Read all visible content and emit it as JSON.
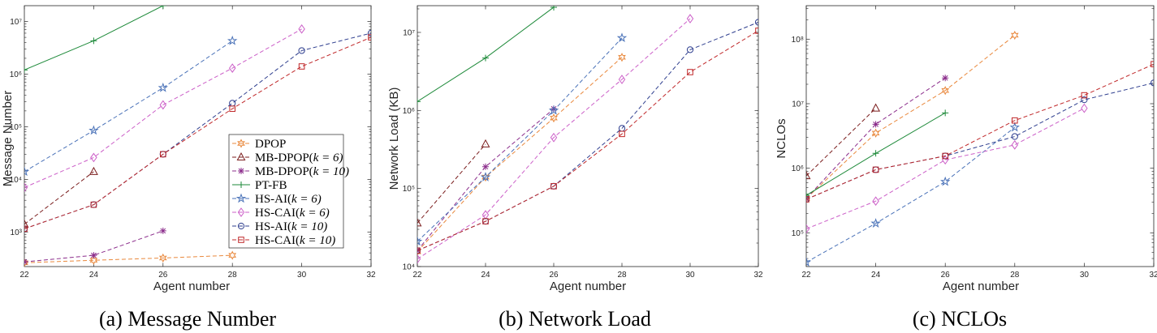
{
  "chart_data": [
    {
      "type": "line",
      "caption": "(a) Message Number",
      "ylabel": "Message Number",
      "xlabel": "Agent number",
      "yscale": "log",
      "xlim": [
        22,
        32
      ],
      "ylim": [
        220,
        20000000
      ],
      "x_ticks": [
        22,
        24,
        26,
        28,
        30,
        32
      ],
      "y_ticks": [
        1000,
        10000,
        100000,
        1000000,
        10000000
      ],
      "y_tick_labels": [
        "10³",
        "10⁴",
        "10⁵",
        "10⁶",
        "10⁷"
      ],
      "legend_position": "inside lower-right",
      "series": [
        {
          "name": "DPOP",
          "x": [
            22,
            24,
            26,
            28
          ],
          "values": [
            260,
            290,
            320,
            360
          ]
        },
        {
          "name": "MB-DPOP(k = 6)",
          "x": [
            22,
            24
          ],
          "values": [
            1400,
            14000
          ]
        },
        {
          "name": "MB-DPOP(k = 10)",
          "x": [
            22,
            24,
            26
          ],
          "values": [
            270,
            360,
            1050
          ]
        },
        {
          "name": "PT-FB",
          "x": [
            22,
            24,
            26
          ],
          "values": [
            1200000,
            4300000,
            20000000
          ]
        },
        {
          "name": "HS-AI(k = 6)",
          "x": [
            22,
            24,
            26,
            28
          ],
          "values": [
            14000,
            85000,
            550000,
            4300000
          ]
        },
        {
          "name": "HS-CAI(k = 6)",
          "x": [
            22,
            24,
            26,
            28,
            30
          ],
          "values": [
            7000,
            26000,
            260000,
            1300000,
            7200000
          ]
        },
        {
          "name": "HS-AI(k = 10)",
          "x": [
            22,
            24,
            26,
            28,
            30,
            32
          ],
          "values": [
            1150,
            3300,
            30000,
            280000,
            2800000,
            6000000
          ]
        },
        {
          "name": "HS-CAI(k = 10)",
          "x": [
            22,
            24,
            26,
            28,
            30,
            32
          ],
          "values": [
            1150,
            3300,
            30000,
            220000,
            1400000,
            5000000
          ]
        }
      ]
    },
    {
      "type": "line",
      "caption": "(b) Network Load",
      "ylabel": "Network Load (KB)",
      "xlabel": "Agent number",
      "yscale": "log",
      "xlim": [
        22,
        32
      ],
      "ylim": [
        10000,
        22000000
      ],
      "x_ticks": [
        22,
        24,
        26,
        28,
        30,
        32
      ],
      "y_ticks": [
        10000,
        100000,
        1000000,
        10000000
      ],
      "y_tick_labels": [
        "10⁴",
        "10⁵",
        "10⁶",
        "10⁷"
      ],
      "series": [
        {
          "name": "DPOP",
          "x": [
            22,
            24,
            26,
            28
          ],
          "values": [
            15500,
            140000,
            800000,
            4800000
          ]
        },
        {
          "name": "MB-DPOP(k = 6)",
          "x": [
            22,
            24
          ],
          "values": [
            36000,
            370000
          ]
        },
        {
          "name": "MB-DPOP(k = 10)",
          "x": [
            22,
            24,
            26
          ],
          "values": [
            16000,
            190000,
            1050000
          ]
        },
        {
          "name": "PT-FB",
          "x": [
            22,
            24,
            26
          ],
          "values": [
            1300000,
            4700000,
            21000000
          ]
        },
        {
          "name": "HS-AI(k = 6)",
          "x": [
            22,
            24,
            26,
            28
          ],
          "values": [
            21000,
            140000,
            1000000,
            8500000
          ]
        },
        {
          "name": "HS-CAI(k = 6)",
          "x": [
            22,
            24,
            26,
            28,
            30
          ],
          "values": [
            12500,
            46000,
            450000,
            2500000,
            15000000
          ]
        },
        {
          "name": "HS-AI(k = 10)",
          "x": [
            22,
            24,
            26,
            28,
            30,
            32
          ],
          "values": [
            16000,
            38000,
            107000,
            590000,
            6000000,
            13500000
          ]
        },
        {
          "name": "HS-CAI(k = 10)",
          "x": [
            22,
            24,
            26,
            28,
            30,
            32
          ],
          "values": [
            16000,
            38000,
            107000,
            500000,
            3100000,
            10500000
          ]
        }
      ]
    },
    {
      "type": "line",
      "caption": "(c) NCLOs",
      "ylabel": "NCLOs",
      "xlabel": "Agent number",
      "yscale": "log",
      "xlim": [
        22,
        32
      ],
      "ylim": [
        30000,
        330000000
      ],
      "x_ticks": [
        22,
        24,
        26,
        28,
        30,
        32
      ],
      "y_ticks": [
        100000,
        1000000,
        10000000,
        100000000
      ],
      "y_tick_labels": [
        "10⁵",
        "10⁶",
        "10⁷",
        "10⁸"
      ],
      "series": [
        {
          "name": "DPOP",
          "x": [
            22,
            24,
            26,
            28
          ],
          "values": [
            340000,
            3500000,
            16000000,
            115000000
          ]
        },
        {
          "name": "MB-DPOP(k = 6)",
          "x": [
            22,
            24
          ],
          "values": [
            760000,
            8500000
          ]
        },
        {
          "name": "MB-DPOP(k = 10)",
          "x": [
            22,
            24,
            26
          ],
          "values": [
            340000,
            4800000,
            25000000
          ]
        },
        {
          "name": "PT-FB",
          "x": [
            22,
            24,
            26
          ],
          "values": [
            380000,
            1700000,
            7200000
          ]
        },
        {
          "name": "HS-AI(k = 6)",
          "x": [
            22,
            24,
            26,
            28
          ],
          "values": [
            35000,
            140000,
            620000,
            4300000
          ]
        },
        {
          "name": "HS-CAI(k = 6)",
          "x": [
            22,
            24,
            26,
            28,
            30
          ],
          "values": [
            115000,
            310000,
            1350000,
            2300000,
            8500000
          ]
        },
        {
          "name": "HS-AI(k = 10)",
          "x": [
            22,
            24,
            26,
            28,
            30,
            32
          ],
          "values": [
            330000,
            950000,
            1550000,
            3100000,
            11500000,
            21000000
          ]
        },
        {
          "name": "HS-CAI(k = 10)",
          "x": [
            22,
            24,
            26,
            28,
            30,
            32
          ],
          "values": [
            330000,
            950000,
            1550000,
            5500000,
            13500000,
            41000000
          ]
        }
      ]
    }
  ],
  "legend": [
    {
      "label": "DPOP",
      "sub": ""
    },
    {
      "label": "MB-DPOP(",
      "sub": "k = 6)"
    },
    {
      "label": "MB-DPOP(",
      "sub": "k = 10)"
    },
    {
      "label": "PT-FB",
      "sub": ""
    },
    {
      "label": "HS-AI(",
      "sub": "k = 6)"
    },
    {
      "label": "HS-CAI(",
      "sub": "k = 6)"
    },
    {
      "label": "HS-AI(",
      "sub": "k = 10)"
    },
    {
      "label": "HS-CAI(",
      "sub": "k = 10)"
    }
  ],
  "series_style": [
    {
      "color": "#E9883C",
      "marker": "hexagram",
      "dash": true
    },
    {
      "color": "#7B1E1E",
      "marker": "triangle",
      "dash": true
    },
    {
      "color": "#8B2C8B",
      "marker": "asterisk",
      "dash": true
    },
    {
      "color": "#1E8A3A",
      "marker": "plus",
      "dash": false
    },
    {
      "color": "#4A72B8",
      "marker": "star",
      "dash": true
    },
    {
      "color": "#CC5FC8",
      "marker": "diamond",
      "dash": true
    },
    {
      "color": "#2F3F8F",
      "marker": "circle",
      "dash": true
    },
    {
      "color": "#C0282A",
      "marker": "square",
      "dash": true
    }
  ]
}
